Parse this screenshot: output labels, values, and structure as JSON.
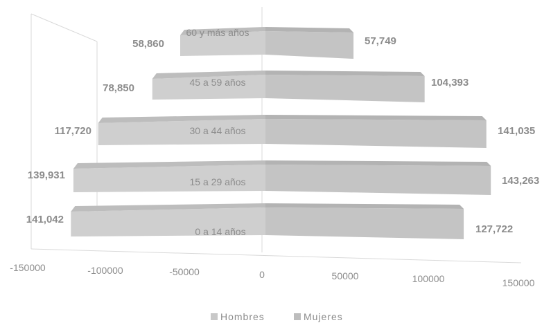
{
  "chart_data": {
    "type": "bar",
    "orientation": "horizontal",
    "style": "3d-population-pyramid",
    "categories": [
      "0 a 14 años",
      "15 a 29 años",
      "30 a 44 años",
      "45 a 59 años",
      "60 y más años"
    ],
    "series": [
      {
        "name": "Hombres",
        "values": [
          -141042,
          -139931,
          -117720,
          -78850,
          -58860
        ],
        "color": "#c8c8c8"
      },
      {
        "name": "Mujeres",
        "values": [
          127722,
          143263,
          141035,
          104393,
          57749
        ],
        "color": "#bdbdbd"
      }
    ],
    "data_labels": {
      "Hombres": [
        "141,042",
        "139,931",
        "117,720",
        "78,850",
        "58,860"
      ],
      "Mujeres": [
        "127,722",
        "143,263",
        "141,035",
        "104,393",
        "57,749"
      ]
    },
    "x_ticks": [
      "-150000",
      "-100000",
      "-50000",
      "0",
      "50000",
      "100000",
      "150000"
    ],
    "x_tick_values": [
      -150000,
      -100000,
      -50000,
      0,
      50000,
      100000,
      150000
    ],
    "xlim": [
      -150000,
      150000
    ],
    "legend_position": "bottom",
    "grid": false
  }
}
